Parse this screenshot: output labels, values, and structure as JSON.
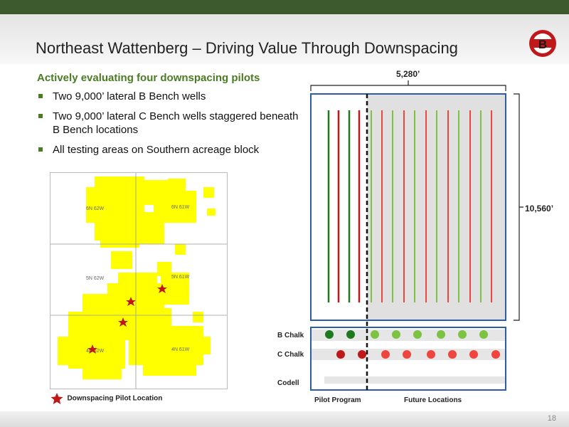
{
  "header": {
    "title": "Northeast Wattenberg – Driving Value Through Downspacing",
    "logo_letter": "B",
    "logo_colors": {
      "red": "#c0171b",
      "dark": "#1a1a1a"
    }
  },
  "content": {
    "subtitle": "Actively evaluating four downspacing pilots",
    "bullets": [
      "Two 9,000’ lateral B Bench wells",
      "Two 9,000’ lateral C Bench wells staggered beneath B Bench locations",
      "All testing areas on Southern acreage block"
    ]
  },
  "map": {
    "townships": [
      "6N 62W",
      "6N 61W",
      "5N 62W",
      "5N 61W",
      "4N 62W",
      "4N 61W"
    ],
    "legend_label": "Downspacing Pilot Location",
    "acreage_color": "#ffff00",
    "star_color": "#c0171b"
  },
  "diagram": {
    "width_label": "5,280’",
    "height_label": "10,560’",
    "benches": [
      "B Chalk",
      "C Chalk",
      "Codell"
    ],
    "section_labels": [
      "Pilot Program",
      "Future Locations"
    ],
    "colors": {
      "green_dark": "#1e7a1e",
      "red_dark": "#c0171b",
      "green_light": "#7cc243",
      "red_light": "#f0443e",
      "frame": "#2a5fa8"
    }
  },
  "footer": {
    "page_number": "18"
  }
}
